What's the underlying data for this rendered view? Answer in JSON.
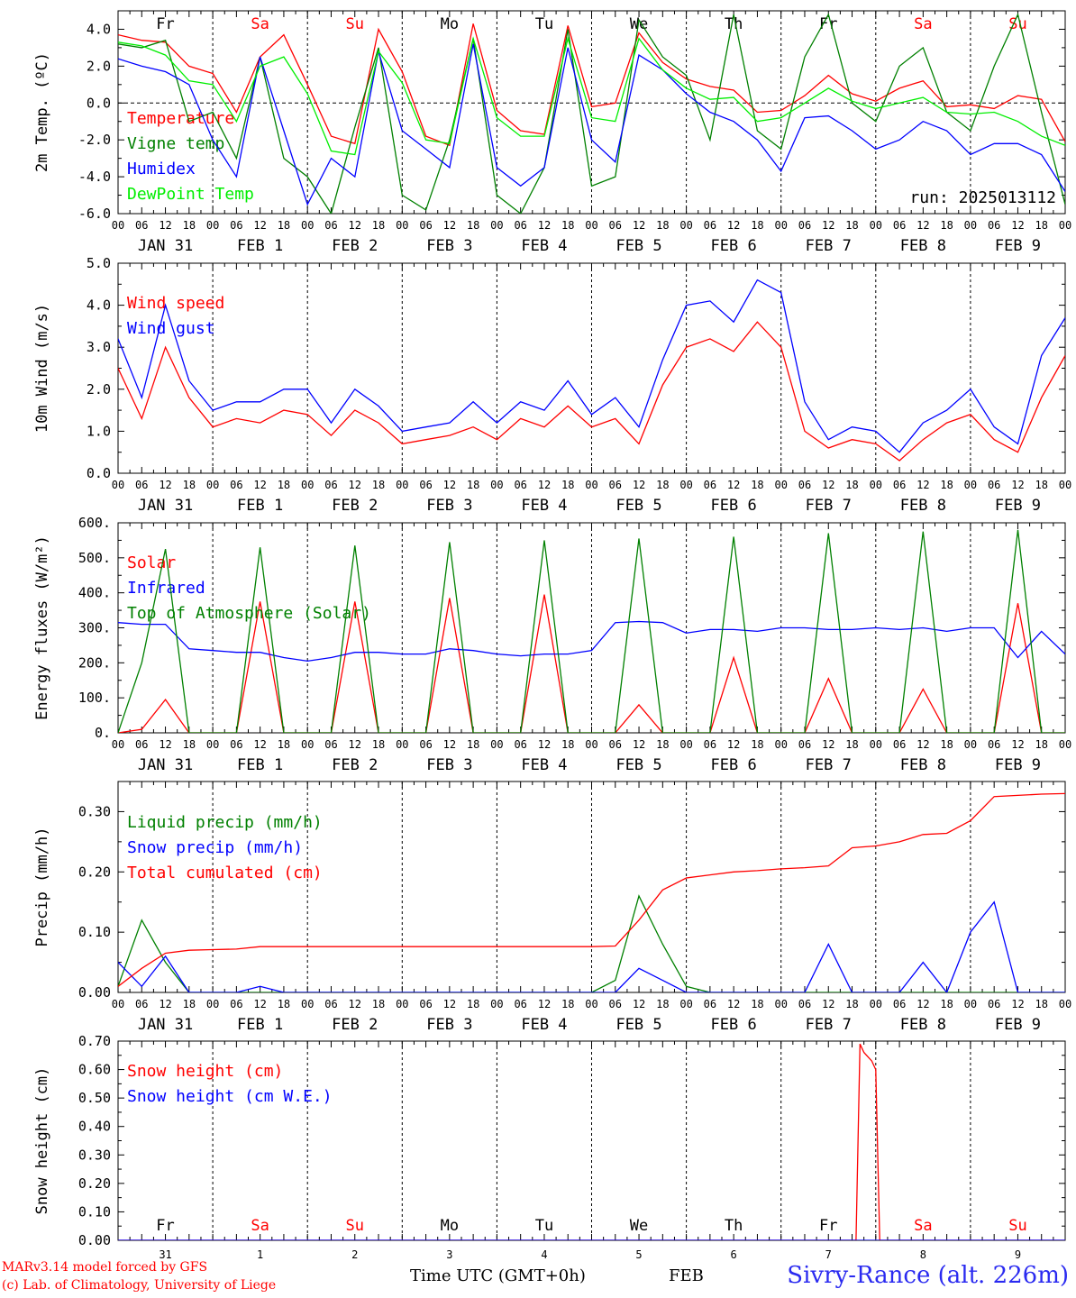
{
  "run_label": "run: 2025013112",
  "hour_ticks": [
    "00",
    "06",
    "12",
    "18"
  ],
  "date_labels": [
    "JAN 31",
    "FEB  1",
    "FEB  2",
    "FEB  3",
    "FEB  4",
    "FEB  5",
    "FEB  6",
    "FEB  7",
    "FEB  8",
    "FEB  9"
  ],
  "bottom_dates": [
    "31",
    "1",
    "2",
    "3",
    "4",
    "5",
    "6",
    "7",
    "8",
    "9"
  ],
  "bottom_month": "FEB",
  "day_names": [
    {
      "text": "Fr",
      "color": "#000000"
    },
    {
      "text": "Sa",
      "color": "#ff0000"
    },
    {
      "text": "Su",
      "color": "#ff0000"
    },
    {
      "text": "Mo",
      "color": "#000000"
    },
    {
      "text": "Tu",
      "color": "#000000"
    },
    {
      "text": "We",
      "color": "#000000"
    },
    {
      "text": "Th",
      "color": "#000000"
    },
    {
      "text": "Fr",
      "color": "#000000"
    },
    {
      "text": "Sa",
      "color": "#ff0000"
    },
    {
      "text": "Su",
      "color": "#ff0000"
    }
  ],
  "footer": {
    "credit_line1": "MARv3.14 model forced by GFS",
    "credit_line2": "(c) Lab. of Climatology, University of Liege",
    "time_axis_label": "Time UTC (GMT+0h)",
    "month": "FEB",
    "station": "Sivry-Rance (alt. 226m)"
  },
  "chart_data": [
    {
      "type": "line",
      "ylabel": "2m Temp. (ºC)",
      "ylim": [
        -6,
        5
      ],
      "yticks": [
        "4.0",
        "2.0",
        "0.0",
        "-2.0",
        "-4.0",
        "-6.0"
      ],
      "ytick_values": [
        4,
        2,
        0,
        -2,
        -4,
        -6
      ],
      "zero_line": true,
      "x_hours": [
        0,
        6,
        12,
        18,
        24,
        30,
        36,
        42,
        48,
        54,
        60,
        66,
        72,
        78,
        84,
        90,
        96,
        102,
        108,
        114,
        120,
        126,
        132,
        138,
        144,
        150,
        156,
        162,
        168,
        174,
        180,
        186,
        192,
        198,
        204,
        210,
        216,
        222,
        228,
        234,
        240
      ],
      "series": [
        {
          "name": "Temperature",
          "color": "#ff0000",
          "values": [
            3.7,
            3.4,
            3.3,
            2.0,
            1.6,
            -0.5,
            2.5,
            3.7,
            1.0,
            -1.8,
            -2.2,
            4.0,
            1.7,
            -1.8,
            -2.3,
            4.3,
            -0.4,
            -1.5,
            -1.7,
            4.2,
            -0.2,
            0.0,
            3.8,
            2.2,
            1.3,
            0.9,
            0.7,
            -0.5,
            -0.4,
            0.4,
            1.5,
            0.5,
            0.1,
            0.8,
            1.2,
            -0.2,
            -0.1,
            -0.3,
            0.4,
            0.2,
            -2.1
          ]
        },
        {
          "name": "Vigne temp",
          "color": "#008000",
          "values": [
            3.2,
            3.0,
            3.4,
            -1.0,
            -0.5,
            -3.0,
            2.5,
            -3.0,
            -4.0,
            -6.0,
            -1.3,
            3.0,
            -5.0,
            -5.8,
            -2.0,
            3.5,
            -5.0,
            -6.0,
            -3.5,
            4.0,
            -4.5,
            -4.0,
            4.5,
            2.5,
            1.5,
            -2.0,
            4.8,
            -1.5,
            -2.5,
            2.5,
            4.8,
            0.0,
            -1.0,
            2.0,
            3.0,
            -0.5,
            -1.5,
            2.0,
            4.8,
            -0.5,
            -5.5
          ]
        },
        {
          "name": "Humidex",
          "color": "#0000ff",
          "values": [
            2.4,
            2.0,
            1.7,
            1.0,
            -2.0,
            -4.0,
            2.5,
            -1.5,
            -5.5,
            -3.0,
            -4.0,
            2.8,
            -1.5,
            -2.5,
            -3.5,
            3.2,
            -3.5,
            -4.5,
            -3.5,
            3.0,
            -2.0,
            -3.2,
            2.6,
            1.8,
            0.5,
            -0.5,
            -1.0,
            -2.0,
            -3.7,
            -0.8,
            -0.7,
            -1.5,
            -2.5,
            -2.0,
            -1.0,
            -1.5,
            -2.8,
            -2.2,
            -2.2,
            -2.8,
            -4.8
          ]
        },
        {
          "name": "DewPoint Temp",
          "color": "#00ee00",
          "values": [
            3.3,
            3.1,
            2.6,
            1.2,
            1.0,
            -1.0,
            2.0,
            2.5,
            0.5,
            -2.6,
            -2.8,
            2.8,
            1.1,
            -2.0,
            -2.2,
            3.5,
            -0.8,
            -1.8,
            -1.8,
            3.5,
            -0.8,
            -1.0,
            3.5,
            1.8,
            0.8,
            0.2,
            0.3,
            -1.0,
            -0.8,
            0.0,
            0.8,
            0.1,
            -0.3,
            0.0,
            0.3,
            -0.5,
            -0.6,
            -0.5,
            -1.0,
            -1.8,
            -2.3
          ]
        }
      ]
    },
    {
      "type": "line",
      "ylabel": "10m Wind (m/s)",
      "ylim": [
        0,
        5
      ],
      "yticks": [
        "5.0",
        "4.0",
        "3.0",
        "2.0",
        "1.0",
        "0.0"
      ],
      "ytick_values": [
        5,
        4,
        3,
        2,
        1,
        0
      ],
      "x_hours": [
        0,
        6,
        12,
        18,
        24,
        30,
        36,
        42,
        48,
        54,
        60,
        66,
        72,
        78,
        84,
        90,
        96,
        102,
        108,
        114,
        120,
        126,
        132,
        138,
        144,
        150,
        156,
        162,
        168,
        174,
        180,
        186,
        192,
        198,
        204,
        210,
        216,
        222,
        228,
        234,
        240
      ],
      "series": [
        {
          "name": "Wind speed",
          "color": "#ff0000",
          "values": [
            2.5,
            1.3,
            3.0,
            1.8,
            1.1,
            1.3,
            1.2,
            1.5,
            1.4,
            0.9,
            1.5,
            1.2,
            0.7,
            0.8,
            0.9,
            1.1,
            0.8,
            1.3,
            1.1,
            1.6,
            1.1,
            1.3,
            0.7,
            2.1,
            3.0,
            3.2,
            2.9,
            3.6,
            3.0,
            1.0,
            0.6,
            0.8,
            0.7,
            0.3,
            0.8,
            1.2,
            1.4,
            0.8,
            0.5,
            1.8,
            2.8
          ]
        },
        {
          "name": "Wind gust",
          "color": "#0000ff",
          "values": [
            3.2,
            1.8,
            4.0,
            2.2,
            1.5,
            1.7,
            1.7,
            2.0,
            2.0,
            1.2,
            2.0,
            1.6,
            1.0,
            1.1,
            1.2,
            1.7,
            1.2,
            1.7,
            1.5,
            2.2,
            1.4,
            1.8,
            1.1,
            2.7,
            4.0,
            4.1,
            3.6,
            4.6,
            4.3,
            1.7,
            0.8,
            1.1,
            1.0,
            0.5,
            1.2,
            1.5,
            2.0,
            1.1,
            0.7,
            2.8,
            3.7
          ]
        }
      ]
    },
    {
      "type": "line",
      "ylabel": "Energy fluxes (W/m²)",
      "ylim": [
        0,
        600
      ],
      "yticks": [
        "600.",
        "500.",
        "400.",
        "300.",
        "200.",
        "100.",
        "0."
      ],
      "ytick_values": [
        600,
        500,
        400,
        300,
        200,
        100,
        0
      ],
      "x_hours": [
        0,
        6,
        12,
        18,
        24,
        30,
        36,
        42,
        48,
        54,
        60,
        66,
        72,
        78,
        84,
        90,
        96,
        102,
        108,
        114,
        120,
        126,
        132,
        138,
        144,
        150,
        156,
        162,
        168,
        174,
        180,
        186,
        192,
        198,
        204,
        210,
        216,
        222,
        228,
        234,
        240
      ],
      "series": [
        {
          "name": "Solar",
          "color": "#ff0000",
          "values": [
            0,
            10,
            95,
            0,
            0,
            0,
            375,
            0,
            0,
            0,
            375,
            0,
            0,
            0,
            385,
            0,
            0,
            0,
            395,
            0,
            0,
            0,
            80,
            0,
            0,
            0,
            215,
            0,
            0,
            0,
            155,
            0,
            0,
            0,
            125,
            0,
            0,
            0,
            370,
            0,
            0
          ]
        },
        {
          "name": "Infrared",
          "color": "#0000ff",
          "values": [
            315,
            310,
            310,
            240,
            235,
            230,
            230,
            215,
            205,
            215,
            230,
            230,
            225,
            225,
            240,
            235,
            225,
            220,
            225,
            225,
            235,
            315,
            318,
            315,
            285,
            295,
            295,
            290,
            300,
            300,
            295,
            295,
            300,
            295,
            300,
            290,
            300,
            300,
            215,
            290,
            225
          ]
        },
        {
          "name": "Top of Atmosphere (Solar)",
          "color": "#008000",
          "values": [
            0,
            200,
            525,
            0,
            0,
            0,
            530,
            0,
            0,
            0,
            535,
            0,
            0,
            0,
            545,
            0,
            0,
            0,
            550,
            0,
            0,
            0,
            555,
            0,
            0,
            0,
            560,
            0,
            0,
            0,
            570,
            0,
            0,
            0,
            575,
            0,
            0,
            0,
            580,
            0,
            0
          ]
        }
      ]
    },
    {
      "type": "line",
      "ylabel": "Precip (mm/h)",
      "ylim": [
        0,
        0.35
      ],
      "yticks": [
        "0.30",
        "0.20",
        "0.10",
        "0.00"
      ],
      "ytick_values": [
        0.3,
        0.2,
        0.1,
        0.0
      ],
      "x_hours": [
        0,
        6,
        12,
        18,
        24,
        30,
        36,
        42,
        48,
        54,
        60,
        66,
        72,
        78,
        84,
        90,
        96,
        102,
        108,
        114,
        120,
        126,
        132,
        138,
        144,
        150,
        156,
        162,
        168,
        174,
        180,
        186,
        192,
        198,
        204,
        210,
        216,
        222,
        228,
        234,
        240
      ],
      "series": [
        {
          "name": "Liquid precip (mm/h)",
          "color": "#008000",
          "values": [
            0.01,
            0.12,
            0.05,
            0.0,
            0.0,
            0.0,
            0.0,
            0.0,
            0.0,
            0.0,
            0.0,
            0.0,
            0.0,
            0.0,
            0.0,
            0.0,
            0.0,
            0.0,
            0.0,
            0.0,
            0.0,
            0.02,
            0.16,
            0.08,
            0.01,
            0.0,
            0.0,
            0.0,
            0.0,
            0.0,
            0.0,
            0.0,
            0.0,
            0.0,
            0.0,
            0.0,
            0.0,
            0.0,
            0.0,
            0.0,
            0.0
          ]
        },
        {
          "name": "Snow precip (mm/h)",
          "color": "#0000ff",
          "values": [
            0.05,
            0.01,
            0.06,
            0.0,
            0.0,
            0.0,
            0.01,
            0.0,
            0.0,
            0.0,
            0.0,
            0.0,
            0.0,
            0.0,
            0.0,
            0.0,
            0.0,
            0.0,
            0.0,
            0.0,
            0.0,
            0.0,
            0.04,
            0.02,
            0.0,
            0.0,
            0.0,
            0.0,
            0.0,
            0.0,
            0.08,
            0.0,
            0.0,
            0.0,
            0.05,
            0.0,
            0.1,
            0.15,
            0.0,
            0.0,
            0.0
          ]
        },
        {
          "name": "Total cumulated (cm)",
          "color": "#ff0000",
          "values": [
            0.01,
            0.04,
            0.065,
            0.07,
            0.071,
            0.072,
            0.076,
            0.076,
            0.076,
            0.076,
            0.076,
            0.076,
            0.076,
            0.076,
            0.076,
            0.076,
            0.076,
            0.076,
            0.076,
            0.076,
            0.076,
            0.077,
            0.12,
            0.17,
            0.19,
            0.195,
            0.2,
            0.202,
            0.205,
            0.207,
            0.21,
            0.24,
            0.243,
            0.25,
            0.262,
            0.264,
            0.285,
            0.325,
            0.327,
            0.329,
            0.33
          ]
        }
      ]
    },
    {
      "type": "line",
      "ylabel": "Snow height (cm)",
      "ylim": [
        0,
        0.7
      ],
      "yticks": [
        "0.70",
        "0.60",
        "0.50",
        "0.40",
        "0.30",
        "0.20",
        "0.10",
        "0.00"
      ],
      "ytick_values": [
        0.7,
        0.6,
        0.5,
        0.4,
        0.3,
        0.2,
        0.1,
        0.0
      ],
      "x_hours": [
        0,
        187,
        188,
        189,
        191,
        192,
        193,
        240
      ],
      "series": [
        {
          "name": "Snow height (cm)",
          "color": "#ff0000",
          "values": [
            0,
            0,
            0.69,
            0.66,
            0.63,
            0.6,
            0,
            0
          ]
        },
        {
          "name": "Snow height (cm W.E.)",
          "color": "#0000ff",
          "values": [
            0,
            0,
            0,
            0,
            0,
            0,
            0,
            0
          ]
        }
      ]
    }
  ]
}
